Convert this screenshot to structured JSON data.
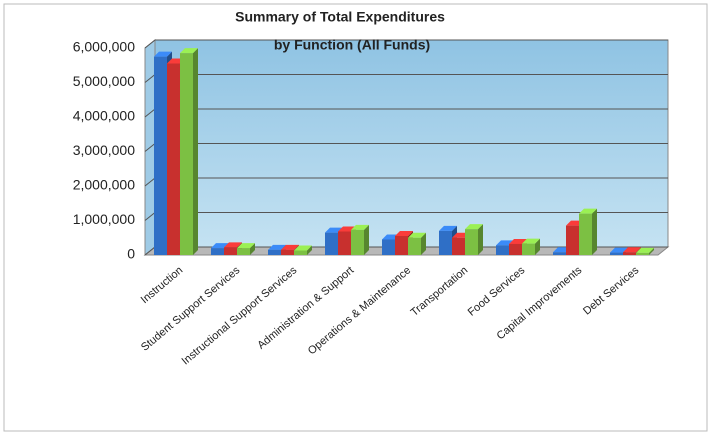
{
  "chart_data": {
    "type": "bar3d",
    "title": [
      "Summary of Total Expenditures",
      "by Function (All Funds)"
    ],
    "categories": [
      "Instruction",
      "Student Support Services",
      "Instructional Support Services",
      "Administration & Support",
      "Operations & Maintenance",
      "Transportation",
      "Food Services",
      "Capital Improvements",
      "Debt Services"
    ],
    "series": [
      {
        "color": "#2f6fc6",
        "values": [
          5750000,
          200000,
          150000,
          650000,
          450000,
          700000,
          280000,
          80000,
          70000
        ]
      },
      {
        "color": "#c8302e",
        "values": [
          5550000,
          220000,
          150000,
          680000,
          550000,
          500000,
          320000,
          850000,
          80000
        ]
      },
      {
        "color": "#7cc043",
        "values": [
          5850000,
          200000,
          130000,
          730000,
          500000,
          750000,
          330000,
          1200000,
          60000
        ]
      }
    ],
    "ylim": [
      0,
      6000000
    ],
    "yticks": [
      {
        "value": 0,
        "label": "0"
      },
      {
        "value": 1000000,
        "label": "1,000,000"
      },
      {
        "value": 2000000,
        "label": "2,000,000"
      },
      {
        "value": 3000000,
        "label": "3,000,000"
      },
      {
        "value": 4000000,
        "label": "4,000,000"
      },
      {
        "value": 5000000,
        "label": "5,000,000"
      },
      {
        "value": 6000000,
        "label": "6,000,000"
      }
    ],
    "grid": true
  }
}
